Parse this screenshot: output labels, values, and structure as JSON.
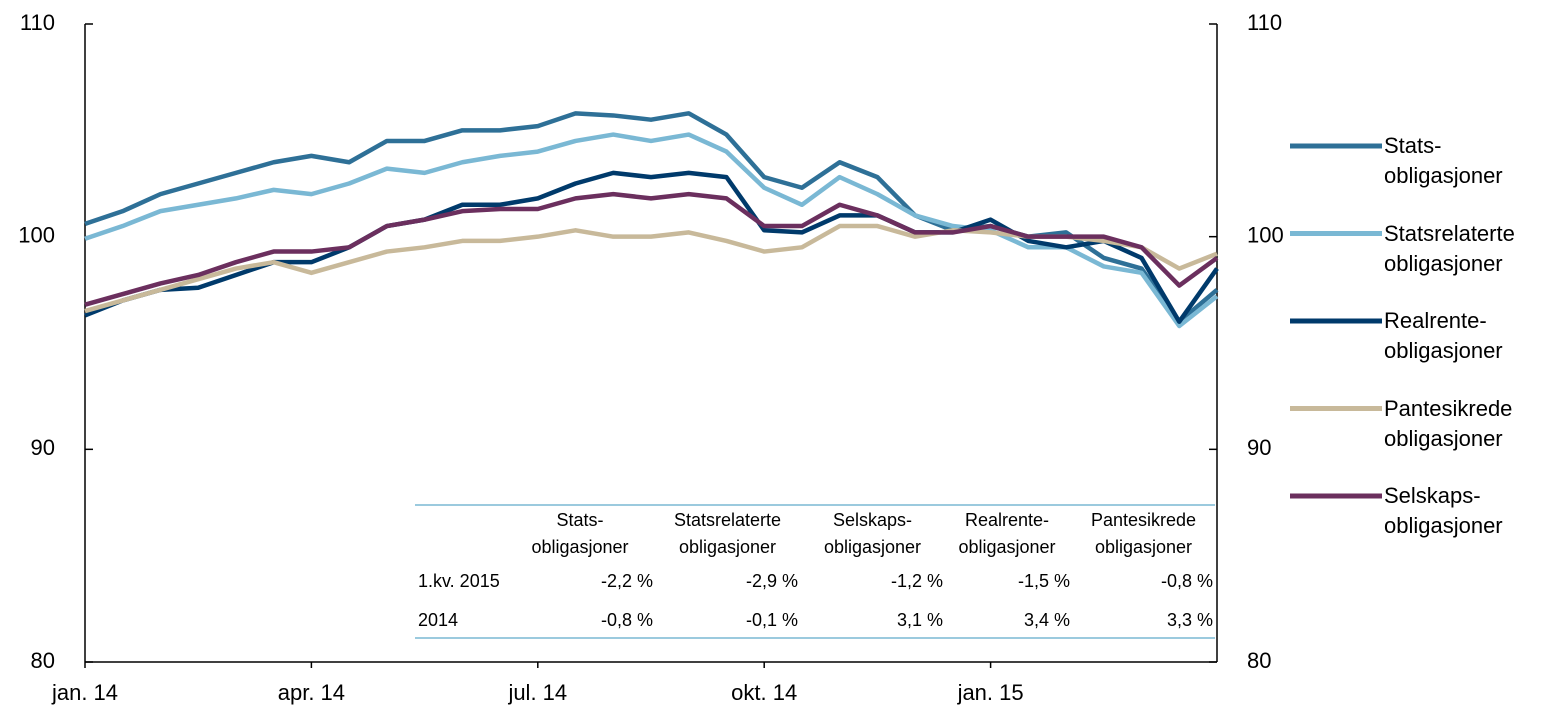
{
  "chart_data": {
    "type": "line",
    "categories": [
      "jan. 14",
      null,
      null,
      null,
      null,
      null,
      "apr. 14",
      null,
      null,
      null,
      null,
      null,
      "jul. 14",
      null,
      null,
      null,
      null,
      null,
      "okt. 14",
      null,
      null,
      null,
      null,
      null,
      "jan. 15",
      null,
      null,
      null,
      null,
      null,
      null
    ],
    "series": [
      {
        "name": "Stats-\nobligasjoner",
        "color": "#2e7097",
        "values": [
          100.6,
          101.2,
          102.0,
          102.5,
          103.0,
          103.5,
          103.8,
          103.5,
          104.5,
          104.5,
          105.0,
          105.0,
          105.2,
          105.8,
          105.7,
          105.5,
          105.8,
          104.8,
          102.8,
          102.3,
          103.5,
          102.8,
          101.0,
          100.3,
          100.5,
          100.0,
          100.2,
          99.0,
          98.5,
          96.0,
          97.5
        ]
      },
      {
        "name": "Statsrelaterte\nobligasjoner",
        "color": "#7ab8d4",
        "values": [
          99.9,
          100.5,
          101.2,
          101.5,
          101.8,
          102.2,
          102.0,
          102.5,
          103.2,
          103.0,
          103.5,
          103.8,
          104.0,
          104.5,
          104.8,
          104.5,
          104.8,
          104.0,
          102.3,
          101.5,
          102.8,
          102.0,
          101.0,
          100.5,
          100.3,
          99.5,
          99.5,
          98.6,
          98.3,
          95.8,
          97.2
        ]
      },
      {
        "name": "Realrente-\nobligasjoner",
        "color": "#003a6b",
        "values": [
          96.3,
          97.0,
          97.5,
          97.6,
          98.2,
          98.8,
          98.8,
          99.5,
          100.5,
          100.8,
          101.5,
          101.5,
          101.8,
          102.5,
          103.0,
          102.8,
          103.0,
          102.8,
          100.3,
          100.2,
          101.0,
          101.0,
          100.2,
          100.2,
          100.8,
          99.8,
          99.5,
          99.8,
          99.0,
          96.0,
          98.5
        ]
      },
      {
        "name": "Pantesikrede\nobligasjoner",
        "color": "#c8b99a",
        "values": [
          96.5,
          97.0,
          97.5,
          98.0,
          98.5,
          98.8,
          98.3,
          98.8,
          99.3,
          99.5,
          99.8,
          99.8,
          100.0,
          100.3,
          100.0,
          100.0,
          100.2,
          99.8,
          99.3,
          99.5,
          100.5,
          100.5,
          100.0,
          100.3,
          100.2,
          100.0,
          100.0,
          99.8,
          99.5,
          98.5,
          99.2
        ]
      },
      {
        "name": "Selskaps-\nobligasjoner",
        "color": "#6b2f5e",
        "values": [
          96.8,
          97.3,
          97.8,
          98.2,
          98.8,
          99.3,
          99.3,
          99.5,
          100.5,
          100.8,
          101.2,
          101.3,
          101.3,
          101.8,
          102.0,
          101.8,
          102.0,
          101.8,
          100.5,
          100.5,
          101.5,
          101.0,
          100.2,
          100.2,
          100.5,
          100.0,
          100.0,
          100.0,
          99.5,
          97.7,
          99.0
        ]
      }
    ],
    "ylim": [
      80,
      110
    ],
    "yticks": [
      80,
      90,
      100,
      110
    ],
    "y2lim": [
      80,
      110
    ],
    "y2ticks": [
      80,
      90,
      100,
      110
    ],
    "legend": "right",
    "table": {
      "columns": [
        "Stats-\nobligasjoner",
        "Statsrelaterte\nobligasjoner",
        "Selskaps-\nobligasjoner",
        "Realrente-\nobligasjoner",
        "Pantesikrede\nobligasjoner"
      ],
      "rows": [
        {
          "label": "1.kv. 2015",
          "cells": [
            "-2,2 %",
            "-2,9 %",
            "-1,2 %",
            "-1,5 %",
            "-0,8 %"
          ]
        },
        {
          "label": "2014",
          "cells": [
            "-0,8 %",
            "-0,1 %",
            "3,1 %",
            "3,4 %",
            "3,3 %"
          ]
        }
      ]
    }
  }
}
